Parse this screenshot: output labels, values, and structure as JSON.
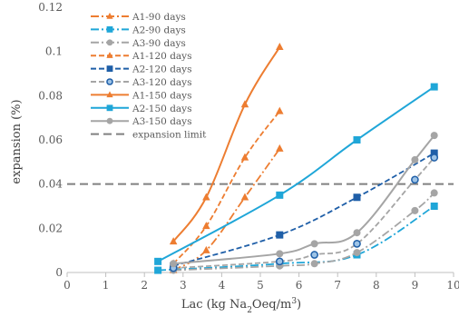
{
  "chart_data": {
    "type": "line",
    "title": "",
    "xlabel": "Lac (kg Na2Oeq/m³)",
    "ylabel": "expansion (%)",
    "xlim": [
      0,
      10
    ],
    "ylim": [
      0,
      0.12
    ],
    "x_ticks": [
      0,
      1,
      2,
      3,
      4,
      5,
      6,
      7,
      8,
      9,
      10
    ],
    "y_ticks": [
      0,
      0.02,
      0.04,
      0.06,
      0.08,
      0.1,
      0.12
    ],
    "x_tick_labels": [
      "0",
      "1",
      "2",
      "3",
      "4",
      "5",
      "6",
      "7",
      "8",
      "9",
      "10"
    ],
    "y_tick_labels": [
      "0",
      "0.02",
      "0.04",
      "0.06",
      "0.08",
      "0.1",
      "0.12"
    ],
    "grid": false,
    "legend_position": "top-left",
    "series": [
      {
        "name": "A1-90 days",
        "color": "#ED7D31",
        "style": "dashdot",
        "marker": "triangle",
        "x": [
          2.75,
          3.6,
          4.6,
          5.5
        ],
        "y": [
          0.001,
          0.01,
          0.034,
          0.056
        ]
      },
      {
        "name": "A2-90 days",
        "color": "#1FA6D8",
        "style": "dashdot",
        "marker": "square",
        "x": [
          2.35,
          5.5,
          7.5,
          9.5
        ],
        "y": [
          0.001,
          0.004,
          0.008,
          0.03
        ]
      },
      {
        "name": "A3-90 days",
        "color": "#A5A5A5",
        "style": "dashdot",
        "marker": "circle",
        "x": [
          2.75,
          5.5,
          6.4,
          7.5,
          9.0,
          9.5
        ],
        "y": [
          0.001,
          0.003,
          0.004,
          0.009,
          0.028,
          0.036
        ]
      },
      {
        "name": "A1-120 days",
        "color": "#ED7D31",
        "style": "dash",
        "marker": "triangle",
        "x": [
          2.75,
          3.6,
          4.6,
          5.5
        ],
        "y": [
          0.004,
          0.021,
          0.052,
          0.073
        ]
      },
      {
        "name": "A2-120 days",
        "color": "#1F5FA8",
        "style": "dash",
        "marker": "square",
        "x": [
          2.75,
          5.5,
          7.5,
          9.5
        ],
        "y": [
          0.003,
          0.017,
          0.034,
          0.054
        ]
      },
      {
        "name": "A3-120 days",
        "color": "#A5A5A5",
        "style": "dash",
        "marker": "circle-blue",
        "x": [
          2.75,
          5.5,
          6.4,
          7.5,
          9.0,
          9.5
        ],
        "y": [
          0.002,
          0.005,
          0.008,
          0.013,
          0.042,
          0.052
        ]
      },
      {
        "name": "A1-150 days",
        "color": "#ED7D31",
        "style": "solid",
        "marker": "triangle",
        "x": [
          2.75,
          3.6,
          4.6,
          5.5
        ],
        "y": [
          0.014,
          0.034,
          0.076,
          0.102
        ]
      },
      {
        "name": "A2-150 days",
        "color": "#1FA6D8",
        "style": "solid",
        "marker": "square",
        "x": [
          2.35,
          5.5,
          7.5,
          9.5
        ],
        "y": [
          0.005,
          0.035,
          0.06,
          0.084
        ]
      },
      {
        "name": "A3-150 days",
        "color": "#A5A5A5",
        "style": "solid",
        "marker": "circle",
        "x": [
          2.75,
          5.5,
          6.4,
          7.5,
          9.0,
          9.5
        ],
        "y": [
          0.004,
          0.0085,
          0.013,
          0.018,
          0.051,
          0.062
        ]
      },
      {
        "name": "expansion limit",
        "color": "#808080",
        "style": "longdash",
        "marker": "none",
        "x": [
          0,
          10
        ],
        "y": [
          0.04,
          0.04
        ]
      }
    ]
  }
}
